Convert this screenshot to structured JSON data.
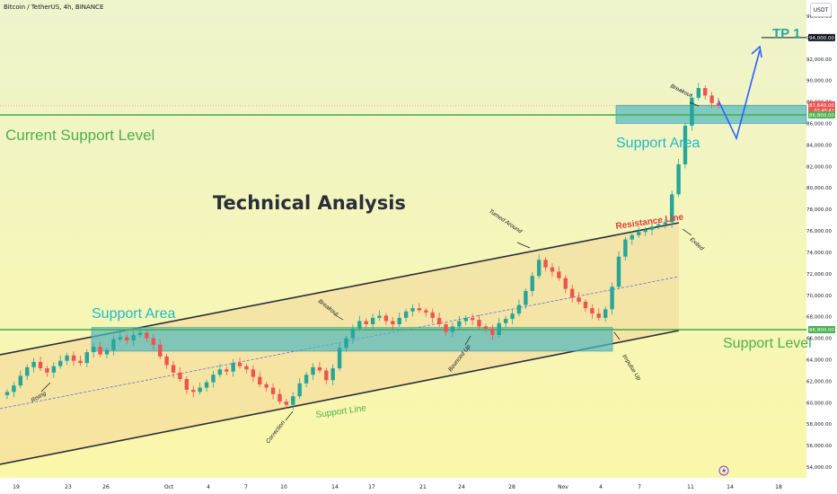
{
  "header": {
    "title": "Bitcoin / TetherUS, 4h, BINANCE",
    "currency": "USDT"
  },
  "colors": {
    "up": "#26a69a",
    "down": "#ef5350",
    "support_green": "#4caf50",
    "zone_fill": "#4fb8c0",
    "channel": "#2a2e39",
    "arrow": "#2962ff",
    "text_cyan": "#1fb8c8",
    "text_red": "#e53935",
    "bg_top": "#eef4c8",
    "bg_bottom": "#faf6a8"
  },
  "chart_data": {
    "type": "candlestick",
    "title": "Technical Analysis",
    "ylim": [
      53000,
      97500
    ],
    "y_ticks": [
      "54,000.00",
      "56,000.00",
      "58,000.00",
      "60,000.00",
      "62,000.00",
      "64,000.00",
      "66,000.00",
      "68,000.00",
      "70,000.00",
      "72,000.00",
      "74,000.00",
      "76,000.00",
      "78,000.00",
      "80,000.00",
      "82,000.00",
      "84,000.00",
      "86,000.00",
      "88,000.00",
      "90,000.00",
      "92,000.00",
      "94,000.00",
      "96,000.00"
    ],
    "x_ticks": [
      "19",
      "23",
      "26",
      "Oct",
      "4",
      "7",
      "10",
      "14",
      "17",
      "21",
      "24",
      "28",
      "Nov",
      "4",
      "7",
      "11",
      "14",
      "18"
    ],
    "price_badges": [
      {
        "label": "94,000.00",
        "value": 94000,
        "color": "#131722"
      },
      {
        "label": "87,640.00",
        "sub": "02:45:42",
        "value": 87640,
        "color": "#ef5350"
      },
      {
        "label": "86,800.00",
        "value": 86800,
        "color": "#4caf50"
      },
      {
        "label": "66,800.00",
        "value": 66800,
        "color": "#4caf50"
      }
    ],
    "levels": [
      {
        "name": "Current Support Level",
        "value": 86800
      },
      {
        "name": "Support Level",
        "value": 66800
      }
    ],
    "zones": [
      {
        "name": "Support Area",
        "from": 64800,
        "to": 67000
      },
      {
        "name": "Support Area",
        "from": 86000,
        "to": 87700
      }
    ],
    "annotations": {
      "technical_analysis": "Technical Analysis",
      "support_area_left": "Support Area",
      "support_area_right": "Support Area",
      "current_support_level": "Current Support Level",
      "support_level": "Support Level",
      "resistance_line": "Resistance Line",
      "support_line": "Support Line",
      "tp1": "TP 1",
      "rising": "Rising",
      "correction": "Correction",
      "breakout_1": "Breakout",
      "bounced_up": "Bounced Up",
      "turned_around": "Turned Around",
      "impulse_up": "Impulse Up",
      "exited": "Exited",
      "breakout_2": "Breakout"
    },
    "closes": [
      61000,
      61600,
      62500,
      63300,
      63800,
      63200,
      62800,
      63400,
      63900,
      64400,
      63900,
      63700,
      64700,
      65200,
      64500,
      64900,
      65900,
      66100,
      65800,
      66300,
      66500,
      66000,
      65400,
      64300,
      63500,
      62800,
      62200,
      61200,
      61000,
      61400,
      61900,
      62600,
      63100,
      62900,
      63700,
      63400,
      63100,
      62400,
      61700,
      61400,
      60800,
      60100,
      59800,
      60600,
      61800,
      62600,
      63300,
      63000,
      62100,
      63200,
      65100,
      66000,
      66900,
      67600,
      67300,
      67900,
      68100,
      67600,
      67300,
      67900,
      68500,
      68800,
      68600,
      68400,
      67900,
      67300,
      66600,
      67100,
      67600,
      67900,
      67700,
      67100,
      66900,
      66300,
      67400,
      67800,
      68300,
      69100,
      70400,
      71800,
      73300,
      72600,
      72200,
      71600,
      70600,
      69800,
      69400,
      68800,
      68300,
      67900,
      68700,
      70800,
      73600,
      75200,
      75600,
      75900,
      76100,
      76400,
      76600,
      76800,
      79400,
      82200,
      85800,
      88400,
      89300,
      88600,
      87900,
      87640
    ]
  }
}
